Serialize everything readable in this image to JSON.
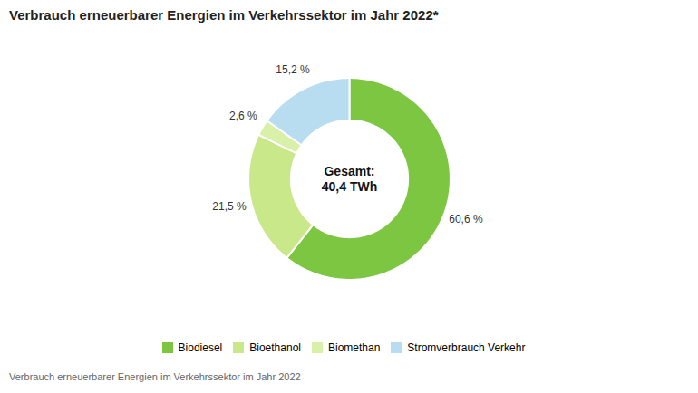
{
  "chart_data": {
    "type": "pie",
    "title": "Verbrauch erneuerbarer Energien im Verkehrssektor im Jahr 2022*",
    "subtitle": "Verbrauch erneuerbarer Energien im Verkehrssektor im Jahr 2022",
    "categories": [
      "Biodiesel",
      "Bioethanol",
      "Biomethan",
      "Stromverbrauch Verkehr"
    ],
    "values": [
      60.6,
      21.5,
      2.6,
      15.2
    ],
    "value_labels": [
      "60,6 %",
      "21,5 %",
      "2,6 %",
      "15,2 %"
    ],
    "colors": [
      "#7dc642",
      "#c8e88a",
      "#d8f0a8",
      "#b8dcf0"
    ],
    "data_labels": true,
    "legend": "bottom",
    "annotations": [
      "Gesamt:\n40,4 TWh"
    ]
  }
}
